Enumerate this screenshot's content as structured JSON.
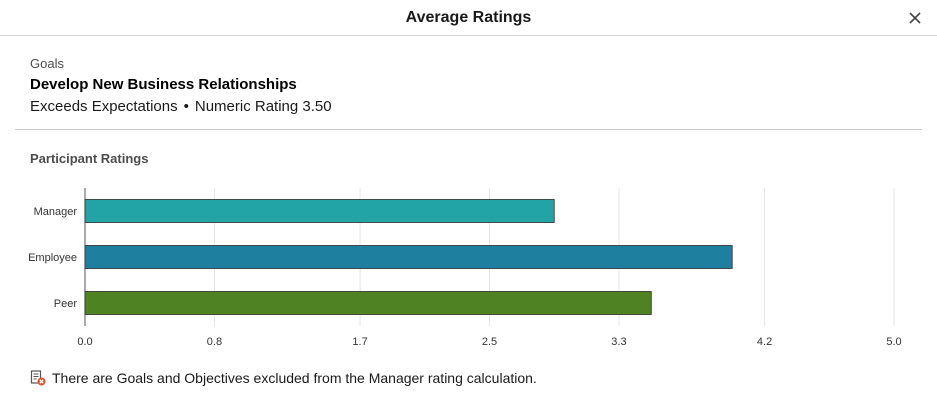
{
  "dialog": {
    "title": "Average Ratings",
    "close_icon": "close-icon"
  },
  "goal": {
    "category": "Goals",
    "name": "Develop New Business Relationships",
    "rating_text": "Exceeds Expectations",
    "separator": "•",
    "numeric_rating": "Numeric Rating 3.50"
  },
  "section": {
    "title": "Participant Ratings"
  },
  "chart_data": {
    "type": "bar",
    "orientation": "horizontal",
    "categories": [
      "Manager",
      "Employee",
      "Peer"
    ],
    "values": [
      2.9,
      4.0,
      3.5
    ],
    "colors": [
      "#22a3a6",
      "#1f7f9e",
      "#4f8223"
    ],
    "xticks": [
      "0.0",
      "0.8",
      "1.7",
      "2.5",
      "3.3",
      "4.2",
      "5.0"
    ],
    "xlim": [
      0,
      5.0
    ],
    "grid": true,
    "legend": "none"
  },
  "note": {
    "icon": "excluded-document-icon",
    "text": "There are Goals and Objectives excluded from the Manager rating calculation."
  }
}
